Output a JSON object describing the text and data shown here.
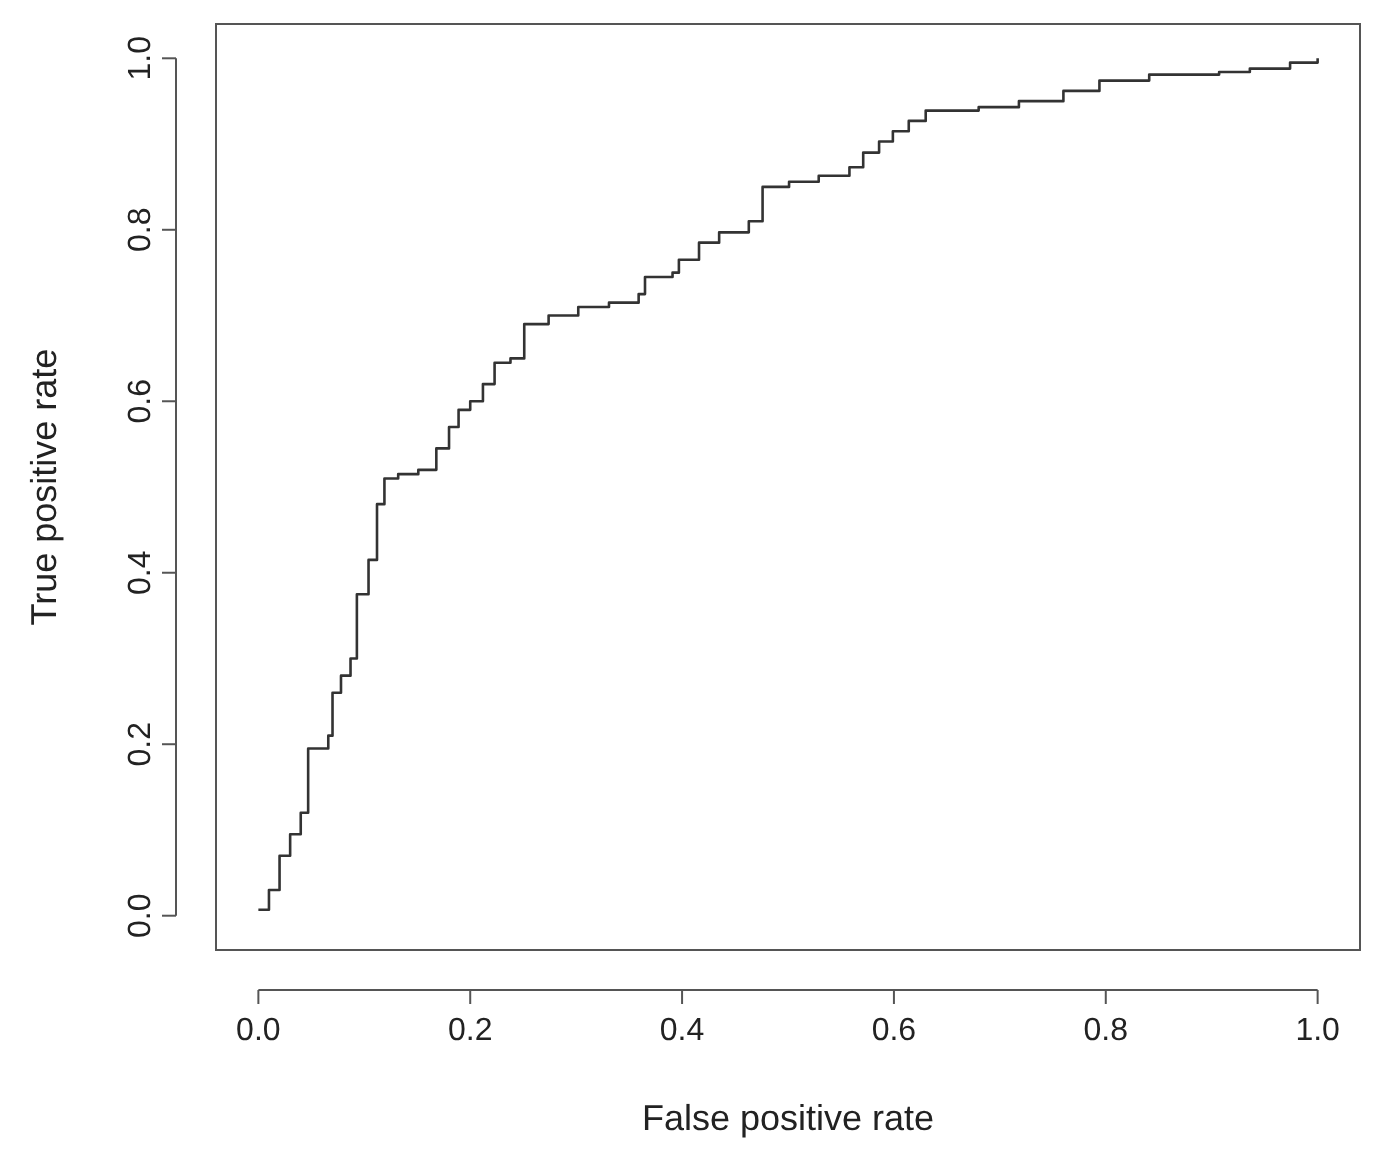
{
  "chart_data": {
    "type": "step",
    "xlabel": "False positive rate",
    "ylabel": "True positive rate",
    "x": [
      0,
      0.01,
      0.02,
      0.03,
      0.04,
      0.047,
      0.066,
      0.07,
      0.078,
      0.087,
      0.093,
      0.104,
      0.112,
      0.119,
      0.132,
      0.151,
      0.168,
      0.18,
      0.189,
      0.2,
      0.212,
      0.223,
      0.238,
      0.251,
      0.274,
      0.302,
      0.331,
      0.359,
      0.365,
      0.391,
      0.397,
      0.416,
      0.435,
      0.463,
      0.476,
      0.501,
      0.529,
      0.558,
      0.571,
      0.586,
      0.599,
      0.614,
      0.63,
      0.68,
      0.718,
      0.76,
      0.794,
      0.841,
      0.907,
      0.936,
      0.974,
      1
    ],
    "series": [
      {
        "color": "#333333",
        "values": [
          0.007,
          0.03,
          0.07,
          0.095,
          0.12,
          0.195,
          0.21,
          0.26,
          0.28,
          0.3,
          0.375,
          0.415,
          0.48,
          0.51,
          0.515,
          0.52,
          0.545,
          0.57,
          0.59,
          0.6,
          0.62,
          0.645,
          0.65,
          0.69,
          0.7,
          0.71,
          0.715,
          0.725,
          0.745,
          0.75,
          0.765,
          0.785,
          0.797,
          0.81,
          0.85,
          0.856,
          0.863,
          0.873,
          0.89,
          0.903,
          0.915,
          0.927,
          0.939,
          0.943,
          0.95,
          0.962,
          0.974,
          0.981,
          0.984,
          0.988,
          0.995,
          1
        ]
      }
    ],
    "xlim": [
      -0.04,
      1.04
    ],
    "ylim": [
      -0.04,
      1.04
    ],
    "xticks": [
      {
        "value": 0,
        "label": "0.0"
      },
      0.2,
      0.4,
      0.6,
      0.8,
      {
        "value": 1,
        "label": "1.0"
      }
    ],
    "yticks": [
      {
        "value": 0,
        "label": "0.0"
      },
      0.2,
      0.4,
      0.6,
      0.8,
      {
        "value": 1,
        "label": "1.0"
      }
    ],
    "grid": false,
    "line_style": "solid"
  }
}
